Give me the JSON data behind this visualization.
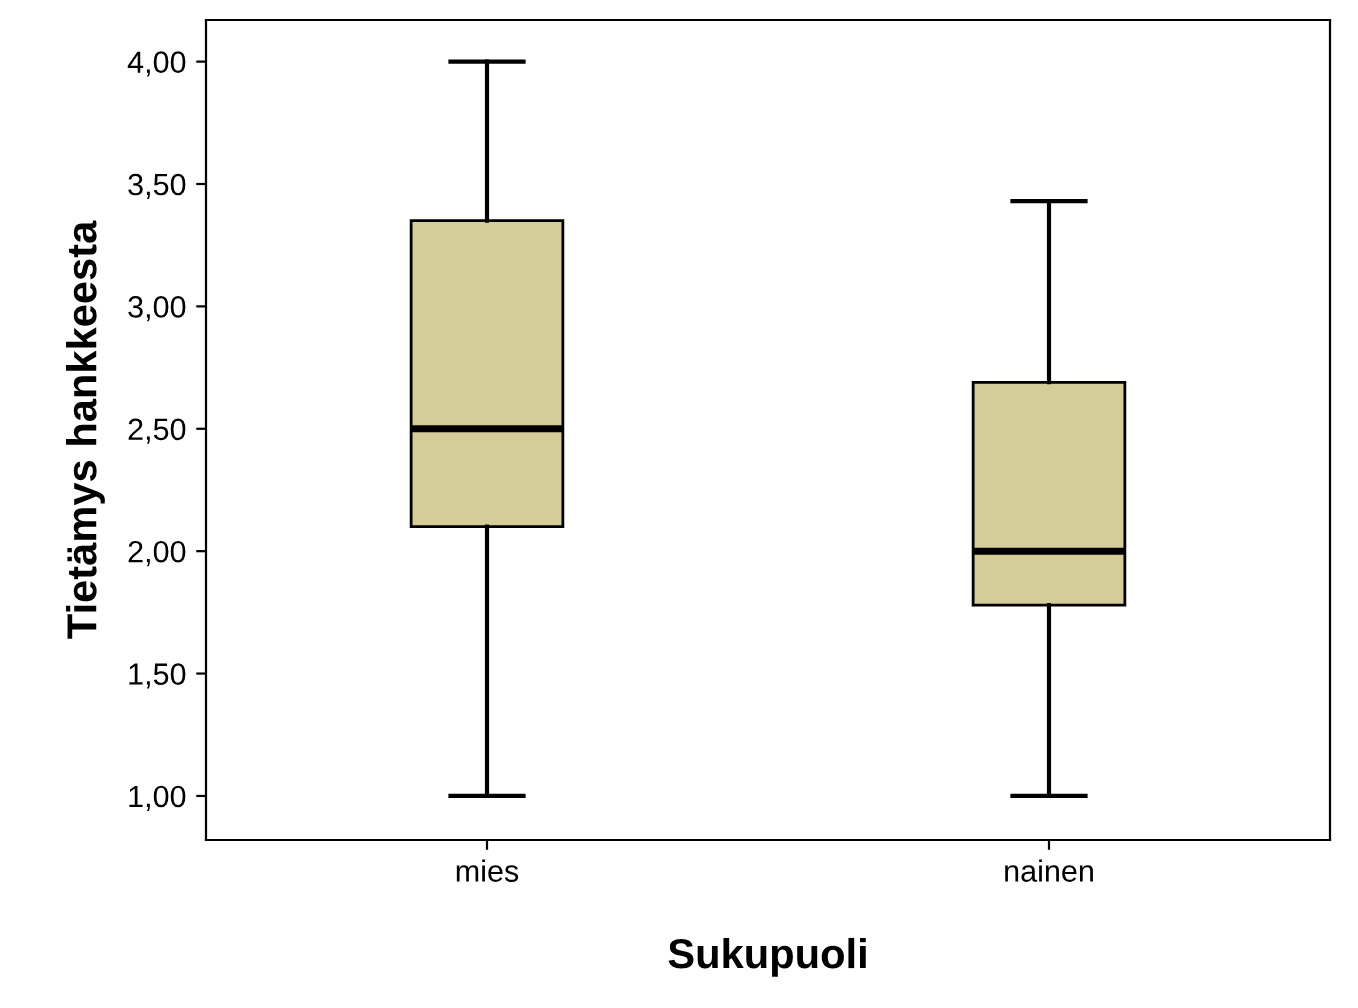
{
  "chart_data": {
    "type": "box",
    "xlabel": "Sukupuoli",
    "ylabel": "Tietämys hankkeesta",
    "categories": [
      "mies",
      "nainen"
    ],
    "boxes": [
      {
        "low": 1.0,
        "q1": 2.1,
        "median": 2.5,
        "q3": 3.35,
        "high": 4.0
      },
      {
        "low": 1.0,
        "q1": 1.78,
        "median": 2.0,
        "q3": 2.69,
        "high": 3.43
      }
    ],
    "color": "#d4cc99",
    "ylim": [
      0.82,
      4.17
    ],
    "yticks": [
      {
        "value": 1.0,
        "label": "1,00"
      },
      {
        "value": 1.5,
        "label": "1,50"
      },
      {
        "value": 2.0,
        "label": "2,00"
      },
      {
        "value": 2.5,
        "label": "2,50"
      },
      {
        "value": 3.0,
        "label": "3,00"
      },
      {
        "value": 3.5,
        "label": "3,50"
      },
      {
        "value": 4.0,
        "label": "4,00"
      }
    ],
    "grid": false
  }
}
